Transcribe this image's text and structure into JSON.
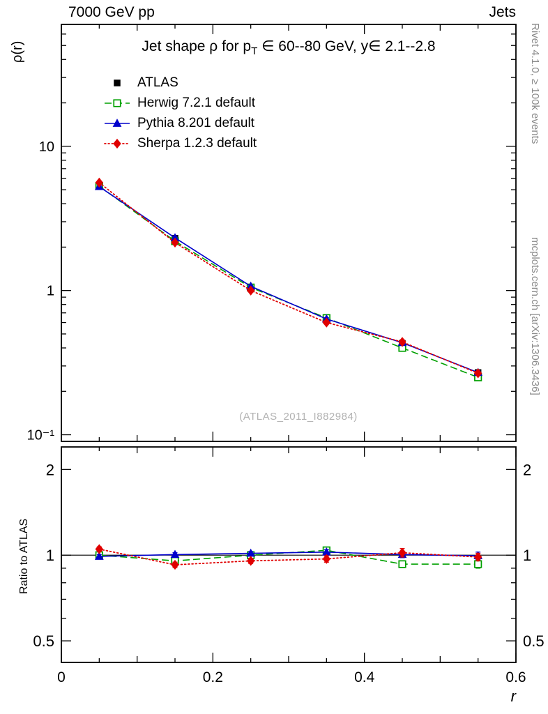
{
  "header": {
    "left": "7000 GeV pp",
    "right": "Jets"
  },
  "side_labels": {
    "rivet": "Rivet 4.1.0, ≥ 100k events",
    "mcplots": "mcplots.cern.ch [arXiv:1306.3436]"
  },
  "watermark": "(ATLAS_2011_I882984)",
  "chart_data": {
    "type": "line",
    "title": "Jet shape ρ for p_T ∈ 60--80 GeV, y∈ 2.1--2.8",
    "title_parts": {
      "pre": "Jet shape ρ for p",
      "sub": "T",
      "post": " ∈ 60--80 GeV, y∈ 2.1--2.8"
    },
    "xlabel": "r",
    "ylabel": "ρ(r)",
    "ratio_ylabel": "Ratio to ATLAS",
    "legend_position": "top-left",
    "grid": false,
    "xlim": [
      0,
      0.6
    ],
    "ylim": [
      0.09,
      70
    ],
    "yscale": "log",
    "ratio_ylim": [
      0.42,
      2.4
    ],
    "ratio_yscale": "log",
    "x": [
      0.05,
      0.15,
      0.25,
      0.35,
      0.45,
      0.55
    ],
    "xticks": [
      {
        "v": 0,
        "label": "0"
      },
      {
        "v": 0.2,
        "label": "0.2"
      },
      {
        "v": 0.4,
        "label": "0.4"
      },
      {
        "v": 0.6,
        "label": "0.6"
      }
    ],
    "yticks": [
      {
        "v": 10,
        "label": "10"
      },
      {
        "v": 1,
        "label": "1"
      },
      {
        "v": 0.1,
        "label": "10⁻¹"
      }
    ],
    "ratio_yticks": [
      {
        "v": 2,
        "label": "2"
      },
      {
        "v": 1,
        "label": "1"
      },
      {
        "v": 0.5,
        "label": "0.5"
      }
    ],
    "series": [
      {
        "name": "ATLAS",
        "color": "#000000",
        "marker": "square-filled",
        "line": "none",
        "is_ref": true,
        "values": [
          5.3,
          2.3,
          1.05,
          0.62,
          0.43,
          0.27
        ],
        "ratio": [
          1,
          1,
          1,
          1,
          1,
          1
        ],
        "ratio_err": [
          0.02,
          0.015,
          0.015,
          0.02,
          0.02,
          0.025
        ]
      },
      {
        "name": "Herwig 7.2.1 default",
        "color": "#00a000",
        "marker": "square-open",
        "line": "dashed",
        "values": [
          5.3,
          2.2,
          1.05,
          0.645,
          0.4,
          0.25
        ],
        "ratio": [
          1.0,
          0.955,
          1.0,
          1.04,
          0.93,
          0.93
        ],
        "ratio_err": [
          0.015,
          0.015,
          0.015,
          0.02,
          0.025,
          0.03
        ]
      },
      {
        "name": "Pythia 8.201 default",
        "color": "#0000cc",
        "marker": "triangle-filled",
        "line": "solid",
        "values": [
          5.25,
          2.32,
          1.07,
          0.635,
          0.435,
          0.27
        ],
        "ratio": [
          0.99,
          1.005,
          1.015,
          1.025,
          1.005,
          0.995
        ],
        "ratio_err": [
          0.015,
          0.015,
          0.015,
          0.02,
          0.025,
          0.03
        ]
      },
      {
        "name": "Sherpa 1.2.3 default",
        "color": "#e00000",
        "marker": "diamond-filled",
        "line": "dotted",
        "values": [
          5.6,
          2.15,
          1.0,
          0.6,
          0.44,
          0.267
        ],
        "ratio": [
          1.05,
          0.925,
          0.955,
          0.97,
          1.02,
          0.985
        ],
        "ratio_err": [
          0.02,
          0.02,
          0.02,
          0.025,
          0.035,
          0.03
        ]
      }
    ]
  }
}
